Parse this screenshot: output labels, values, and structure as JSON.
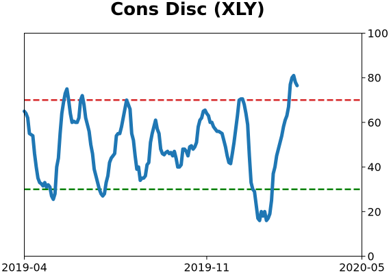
{
  "chart_data": {
    "type": "line",
    "title": "Cons Disc (XLY)",
    "xlabel": "",
    "ylabel": "",
    "xlim": [
      "2019-04-01",
      "2020-05-01"
    ],
    "ylim": [
      0,
      100
    ],
    "x_ticks": [
      "2019-04",
      "2019-11",
      "2020-05"
    ],
    "y_ticks": [
      0,
      20,
      40,
      60,
      80,
      100
    ],
    "y_axis_side": "right",
    "grid": false,
    "legend": "none",
    "reference_lines": [
      {
        "y": 70,
        "color": "#d62728",
        "style": "dashed"
      },
      {
        "y": 30,
        "color": "#008000",
        "style": "dashed"
      }
    ],
    "series": [
      {
        "color": "#1f77b4",
        "points": [
          [
            "2019-04-01",
            65
          ],
          [
            "2019-04-03",
            64
          ],
          [
            "2019-04-05",
            62
          ],
          [
            "2019-04-07",
            55
          ],
          [
            "2019-04-09",
            54.5
          ],
          [
            "2019-04-11",
            54
          ],
          [
            "2019-04-13",
            46
          ],
          [
            "2019-04-15",
            40
          ],
          [
            "2019-04-17",
            35
          ],
          [
            "2019-04-19",
            33
          ],
          [
            "2019-04-21",
            32.5
          ],
          [
            "2019-04-23",
            31.5
          ],
          [
            "2019-04-25",
            33
          ],
          [
            "2019-04-27",
            31
          ],
          [
            "2019-04-29",
            32
          ],
          [
            "2019-05-01",
            31
          ],
          [
            "2019-05-03",
            27
          ],
          [
            "2019-05-05",
            25.5
          ],
          [
            "2019-05-07",
            28
          ],
          [
            "2019-05-09",
            40
          ],
          [
            "2019-05-11",
            44
          ],
          [
            "2019-05-13",
            55
          ],
          [
            "2019-05-15",
            64
          ],
          [
            "2019-05-17",
            69
          ],
          [
            "2019-05-19",
            73
          ],
          [
            "2019-05-21",
            75
          ],
          [
            "2019-05-23",
            70
          ],
          [
            "2019-05-25",
            64
          ],
          [
            "2019-05-27",
            60
          ],
          [
            "2019-05-29",
            60.5
          ],
          [
            "2019-05-31",
            60
          ],
          [
            "2019-06-02",
            60
          ],
          [
            "2019-06-04",
            62
          ],
          [
            "2019-06-06",
            70
          ],
          [
            "2019-06-08",
            72
          ],
          [
            "2019-06-10",
            68
          ],
          [
            "2019-06-12",
            62
          ],
          [
            "2019-06-14",
            59
          ],
          [
            "2019-06-16",
            56
          ],
          [
            "2019-06-18",
            50
          ],
          [
            "2019-06-20",
            46
          ],
          [
            "2019-06-22",
            39
          ],
          [
            "2019-06-24",
            36
          ],
          [
            "2019-06-26",
            33
          ],
          [
            "2019-06-28",
            30
          ],
          [
            "2019-06-30",
            28
          ],
          [
            "2019-07-02",
            27
          ],
          [
            "2019-07-04",
            28
          ],
          [
            "2019-07-06",
            33
          ],
          [
            "2019-07-08",
            36
          ],
          [
            "2019-07-10",
            42
          ],
          [
            "2019-07-12",
            44
          ],
          [
            "2019-07-14",
            45
          ],
          [
            "2019-07-16",
            46
          ],
          [
            "2019-07-18",
            54
          ],
          [
            "2019-07-20",
            55
          ],
          [
            "2019-07-22",
            55
          ],
          [
            "2019-07-24",
            58
          ],
          [
            "2019-07-26",
            62
          ],
          [
            "2019-07-28",
            66
          ],
          [
            "2019-07-30",
            70
          ],
          [
            "2019-08-01",
            68
          ],
          [
            "2019-08-03",
            66
          ],
          [
            "2019-08-05",
            55
          ],
          [
            "2019-08-07",
            52
          ],
          [
            "2019-08-09",
            45
          ],
          [
            "2019-08-11",
            39
          ],
          [
            "2019-08-13",
            40
          ],
          [
            "2019-08-15",
            34
          ],
          [
            "2019-08-17",
            35
          ],
          [
            "2019-08-19",
            35
          ],
          [
            "2019-08-21",
            36
          ],
          [
            "2019-08-23",
            41
          ],
          [
            "2019-08-25",
            42
          ],
          [
            "2019-08-27",
            51
          ],
          [
            "2019-08-29",
            55
          ],
          [
            "2019-08-31",
            58
          ],
          [
            "2019-09-02",
            61
          ],
          [
            "2019-09-04",
            57
          ],
          [
            "2019-09-06",
            55
          ],
          [
            "2019-09-08",
            48
          ],
          [
            "2019-09-10",
            46
          ],
          [
            "2019-09-12",
            45.5
          ],
          [
            "2019-09-14",
            46.5
          ],
          [
            "2019-09-16",
            47
          ],
          [
            "2019-09-18",
            46
          ],
          [
            "2019-09-20",
            46.5
          ],
          [
            "2019-09-22",
            45
          ],
          [
            "2019-09-24",
            47
          ],
          [
            "2019-09-26",
            44
          ],
          [
            "2019-09-28",
            40
          ],
          [
            "2019-09-30",
            40
          ],
          [
            "2019-10-02",
            41
          ],
          [
            "2019-10-04",
            48
          ],
          [
            "2019-10-06",
            48
          ],
          [
            "2019-10-08",
            47
          ],
          [
            "2019-10-10",
            45
          ],
          [
            "2019-10-12",
            49
          ],
          [
            "2019-10-14",
            49.5
          ],
          [
            "2019-10-16",
            48
          ],
          [
            "2019-10-18",
            49
          ],
          [
            "2019-10-20",
            51
          ],
          [
            "2019-10-22",
            58
          ],
          [
            "2019-10-24",
            61
          ],
          [
            "2019-10-26",
            62
          ],
          [
            "2019-10-28",
            65
          ],
          [
            "2019-10-30",
            65.5
          ],
          [
            "2019-11-01",
            64
          ],
          [
            "2019-11-03",
            63
          ],
          [
            "2019-11-05",
            60
          ],
          [
            "2019-11-07",
            60
          ],
          [
            "2019-11-09",
            58
          ],
          [
            "2019-11-11",
            57
          ],
          [
            "2019-11-13",
            56
          ],
          [
            "2019-11-15",
            56
          ],
          [
            "2019-11-17",
            55.5
          ],
          [
            "2019-11-19",
            55
          ],
          [
            "2019-11-21",
            52
          ],
          [
            "2019-11-23",
            49
          ],
          [
            "2019-11-25",
            45
          ],
          [
            "2019-11-27",
            42
          ],
          [
            "2019-11-29",
            41.5
          ],
          [
            "2019-12-01",
            46
          ],
          [
            "2019-12-03",
            51
          ],
          [
            "2019-12-05",
            57
          ],
          [
            "2019-12-07",
            63
          ],
          [
            "2019-12-09",
            70
          ],
          [
            "2019-12-11",
            70.5
          ],
          [
            "2019-12-13",
            70.5
          ],
          [
            "2019-12-15",
            68
          ],
          [
            "2019-12-17",
            64
          ],
          [
            "2019-12-19",
            59
          ],
          [
            "2019-12-21",
            45
          ],
          [
            "2019-12-23",
            33
          ],
          [
            "2019-12-25",
            30
          ],
          [
            "2019-12-27",
            29
          ],
          [
            "2019-12-29",
            23
          ],
          [
            "2019-12-31",
            17
          ],
          [
            "2020-01-02",
            16
          ],
          [
            "2020-01-04",
            20
          ],
          [
            "2020-01-06",
            18
          ],
          [
            "2020-01-08",
            20
          ],
          [
            "2020-01-10",
            16
          ],
          [
            "2020-01-12",
            17
          ],
          [
            "2020-01-14",
            19
          ],
          [
            "2020-01-16",
            25
          ],
          [
            "2020-01-18",
            37
          ],
          [
            "2020-01-20",
            40
          ],
          [
            "2020-01-22",
            45
          ],
          [
            "2020-01-24",
            48
          ],
          [
            "2020-01-26",
            51
          ],
          [
            "2020-01-28",
            54
          ],
          [
            "2020-01-30",
            58
          ],
          [
            "2020-02-01",
            61
          ],
          [
            "2020-02-03",
            63
          ],
          [
            "2020-02-05",
            67
          ],
          [
            "2020-02-07",
            77
          ],
          [
            "2020-02-09",
            80
          ],
          [
            "2020-02-11",
            81
          ],
          [
            "2020-02-13",
            78
          ],
          [
            "2020-02-15",
            76.5
          ]
        ]
      }
    ]
  }
}
